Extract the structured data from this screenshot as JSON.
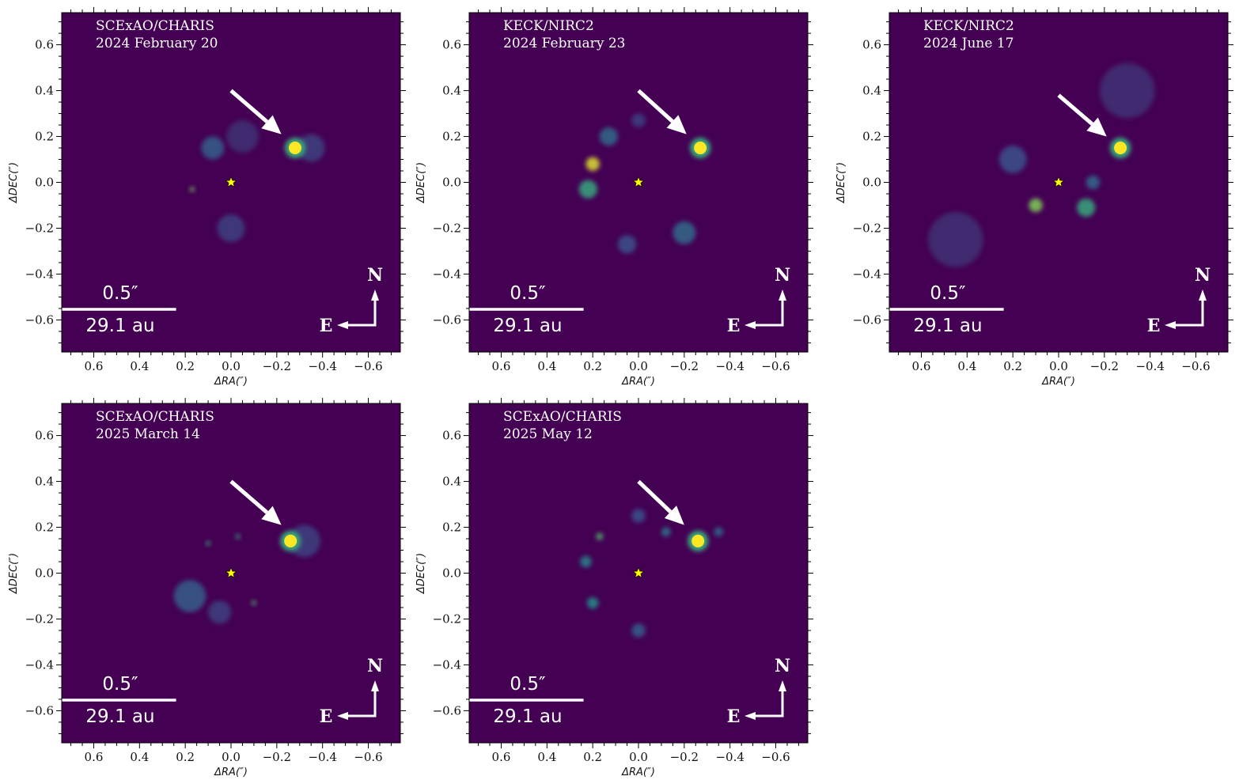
{
  "figure": {
    "colormap": "viridis",
    "background_color": "#440154",
    "companion_color": "#fde725",
    "star_color": "#ffff00",
    "arrow_color": "#ffffff"
  },
  "chart_data": [
    {
      "type": "heatmap",
      "panel_index": 0,
      "instrument": "SCExAO/CHARIS",
      "date": "2024 February 20",
      "xlabel": "ΔRA(″)",
      "ylabel": "ΔDEC(″)",
      "xlim": [
        0.74,
        -0.74
      ],
      "ylim": [
        -0.74,
        0.74
      ],
      "xticks": [
        0.6,
        0.4,
        0.2,
        0.0,
        -0.2,
        -0.4,
        -0.6
      ],
      "xtick_labels": [
        "0.6",
        "0.4",
        "0.2",
        "0.0",
        "−0.2",
        "−0.4",
        "−0.6"
      ],
      "yticks": [
        0.6,
        0.4,
        0.2,
        0.0,
        -0.2,
        -0.4,
        -0.6
      ],
      "ytick_labels": [
        "0.6",
        "0.4",
        "0.2",
        "0.0",
        "−0.2",
        "−0.4",
        "−0.6"
      ],
      "star": {
        "x": 0.0,
        "y": 0.0
      },
      "companion": {
        "x": -0.28,
        "y": 0.15
      },
      "arrow": {
        "from": [
          0.0,
          0.4
        ],
        "to": [
          -0.22,
          0.21
        ]
      },
      "scale_bar": {
        "length_arcsec": 0.5,
        "label_top": "0.5″",
        "label_bottom": "29.1 au"
      },
      "compass": {
        "north": "N",
        "east": "E"
      },
      "features": [
        {
          "x": 0.08,
          "y": 0.15,
          "r": 0.05,
          "level": 0.3
        },
        {
          "x": -0.35,
          "y": 0.15,
          "r": 0.06,
          "level": 0.2
        },
        {
          "x": 0.17,
          "y": -0.03,
          "r": 0.01,
          "level": 0.8
        },
        {
          "x": 0.0,
          "y": -0.2,
          "r": 0.06,
          "level": 0.2
        },
        {
          "x": -0.05,
          "y": 0.2,
          "r": 0.07,
          "level": 0.15
        }
      ]
    },
    {
      "type": "heatmap",
      "panel_index": 1,
      "instrument": "KECK/NIRC2",
      "date": "2024 February 23",
      "xlabel": "ΔRA(″)",
      "ylabel": "ΔDEC(″)",
      "xlim": [
        0.74,
        -0.74
      ],
      "ylim": [
        -0.74,
        0.74
      ],
      "xticks": [
        0.6,
        0.4,
        0.2,
        0.0,
        -0.2,
        -0.4,
        -0.6
      ],
      "xtick_labels": [
        "0.6",
        "0.4",
        "0.2",
        "0.0",
        "−0.2",
        "−0.4",
        "−0.6"
      ],
      "yticks": [
        0.6,
        0.4,
        0.2,
        0.0,
        -0.2,
        -0.4,
        -0.6
      ],
      "ytick_labels": [
        "0.6",
        "0.4",
        "0.2",
        "0.0",
        "−0.2",
        "−0.4",
        "−0.6"
      ],
      "star": {
        "x": 0.0,
        "y": 0.0
      },
      "companion": {
        "x": -0.27,
        "y": 0.15
      },
      "arrow": {
        "from": [
          0.0,
          0.4
        ],
        "to": [
          -0.21,
          0.21
        ]
      },
      "scale_bar": {
        "length_arcsec": 0.5,
        "label_top": "0.5″",
        "label_bottom": "29.1 au"
      },
      "compass": {
        "north": "N",
        "east": "E"
      },
      "features": [
        {
          "x": 0.2,
          "y": 0.08,
          "r": 0.03,
          "level": 0.95
        },
        {
          "x": 0.22,
          "y": -0.03,
          "r": 0.04,
          "level": 0.6
        },
        {
          "x": 0.13,
          "y": 0.2,
          "r": 0.04,
          "level": 0.35
        },
        {
          "x": -0.2,
          "y": -0.22,
          "r": 0.05,
          "level": 0.35
        },
        {
          "x": 0.05,
          "y": -0.27,
          "r": 0.04,
          "level": 0.25
        },
        {
          "x": 0.0,
          "y": 0.27,
          "r": 0.03,
          "level": 0.2
        }
      ]
    },
    {
      "type": "heatmap",
      "panel_index": 2,
      "instrument": "KECK/NIRC2",
      "date": "2024 June 17",
      "xlabel": "ΔRA(″)",
      "ylabel": "ΔDEC(″)",
      "xlim": [
        0.74,
        -0.74
      ],
      "ylim": [
        -0.74,
        0.74
      ],
      "xticks": [
        0.6,
        0.4,
        0.2,
        0.0,
        -0.2,
        -0.4,
        -0.6
      ],
      "xtick_labels": [
        "0.6",
        "0.4",
        "0.2",
        "0.0",
        "−0.2",
        "−0.4",
        "−0.6"
      ],
      "yticks": [
        0.6,
        0.4,
        0.2,
        0.0,
        -0.2,
        -0.4,
        -0.6
      ],
      "ytick_labels": [
        "0.6",
        "0.4",
        "0.2",
        "0.0",
        "−0.2",
        "−0.4",
        "−0.6"
      ],
      "star": {
        "x": 0.0,
        "y": 0.0
      },
      "companion": {
        "x": -0.27,
        "y": 0.15
      },
      "arrow": {
        "from": [
          0.0,
          0.38
        ],
        "to": [
          -0.21,
          0.2
        ]
      },
      "scale_bar": {
        "length_arcsec": 0.5,
        "label_top": "0.5″",
        "label_bottom": "29.1 au"
      },
      "compass": {
        "north": "N",
        "east": "E"
      },
      "features": [
        {
          "x": 0.1,
          "y": -0.1,
          "r": 0.03,
          "level": 0.8
        },
        {
          "x": -0.12,
          "y": -0.11,
          "r": 0.04,
          "level": 0.6
        },
        {
          "x": -0.15,
          "y": 0.0,
          "r": 0.03,
          "level": 0.35
        },
        {
          "x": 0.2,
          "y": 0.1,
          "r": 0.06,
          "level": 0.25
        },
        {
          "x": 0.45,
          "y": -0.25,
          "r": 0.12,
          "level": 0.15
        },
        {
          "x": -0.3,
          "y": 0.4,
          "r": 0.12,
          "level": 0.15
        }
      ]
    },
    {
      "type": "heatmap",
      "panel_index": 3,
      "instrument": "SCExAO/CHARIS",
      "date": "2025 March 14",
      "xlabel": "ΔRA(″)",
      "ylabel": "ΔDEC(″)",
      "xlim": [
        0.74,
        -0.74
      ],
      "ylim": [
        -0.74,
        0.74
      ],
      "xticks": [
        0.6,
        0.4,
        0.2,
        0.0,
        -0.2,
        -0.4,
        -0.6
      ],
      "xtick_labels": [
        "0.6",
        "0.4",
        "0.2",
        "0.0",
        "−0.2",
        "−0.4",
        "−0.6"
      ],
      "yticks": [
        0.6,
        0.4,
        0.2,
        0.0,
        -0.2,
        -0.4,
        -0.6
      ],
      "ytick_labels": [
        "0.6",
        "0.4",
        "0.2",
        "0.0",
        "−0.2",
        "−0.4",
        "−0.6"
      ],
      "star": {
        "x": 0.0,
        "y": 0.0
      },
      "companion": {
        "x": -0.26,
        "y": 0.14
      },
      "arrow": {
        "from": [
          0.0,
          0.4
        ],
        "to": [
          -0.22,
          0.21
        ]
      },
      "scale_bar": {
        "length_arcsec": 0.5,
        "label_top": "0.5″",
        "label_bottom": "29.1 au"
      },
      "compass": {
        "north": "N",
        "east": "E"
      },
      "features": [
        {
          "x": 0.18,
          "y": -0.1,
          "r": 0.07,
          "level": 0.3
        },
        {
          "x": 0.05,
          "y": -0.17,
          "r": 0.05,
          "level": 0.2
        },
        {
          "x": 0.1,
          "y": 0.13,
          "r": 0.01,
          "level": 0.6
        },
        {
          "x": -0.03,
          "y": 0.16,
          "r": 0.01,
          "level": 0.6
        },
        {
          "x": -0.1,
          "y": -0.13,
          "r": 0.01,
          "level": 0.7
        },
        {
          "x": -0.32,
          "y": 0.14,
          "r": 0.07,
          "level": 0.2
        }
      ]
    },
    {
      "type": "heatmap",
      "panel_index": 4,
      "instrument": "SCExAO/CHARIS",
      "date": "2025 May 12",
      "xlabel": "ΔRA(″)",
      "ylabel": "ΔDEC(″)",
      "xlim": [
        0.74,
        -0.74
      ],
      "ylim": [
        -0.74,
        0.74
      ],
      "xticks": [
        0.6,
        0.4,
        0.2,
        0.0,
        -0.2,
        -0.4,
        -0.6
      ],
      "xtick_labels": [
        "0.6",
        "0.4",
        "0.2",
        "0.0",
        "−0.2",
        "−0.4",
        "−0.6"
      ],
      "yticks": [
        0.6,
        0.4,
        0.2,
        0.0,
        -0.2,
        -0.4,
        -0.6
      ],
      "ytick_labels": [
        "0.6",
        "0.4",
        "0.2",
        "0.0",
        "−0.2",
        "−0.4",
        "−0.6"
      ],
      "star": {
        "x": 0.0,
        "y": 0.0
      },
      "companion": {
        "x": -0.26,
        "y": 0.14
      },
      "arrow": {
        "from": [
          -0.0,
          0.4
        ],
        "to": [
          -0.2,
          0.21
        ]
      },
      "scale_bar": {
        "length_arcsec": 0.5,
        "label_top": "0.5″",
        "label_bottom": "29.1 au"
      },
      "compass": {
        "north": "N",
        "east": "E"
      },
      "features": [
        {
          "x": 0.17,
          "y": 0.16,
          "r": 0.015,
          "level": 0.7
        },
        {
          "x": 0.23,
          "y": 0.05,
          "r": 0.025,
          "level": 0.45
        },
        {
          "x": 0.2,
          "y": -0.13,
          "r": 0.025,
          "level": 0.5
        },
        {
          "x": -0.12,
          "y": 0.18,
          "r": 0.02,
          "level": 0.4
        },
        {
          "x": -0.35,
          "y": 0.18,
          "r": 0.02,
          "level": 0.35
        },
        {
          "x": 0.0,
          "y": -0.25,
          "r": 0.03,
          "level": 0.3
        },
        {
          "x": 0.0,
          "y": 0.25,
          "r": 0.03,
          "level": 0.25
        }
      ]
    }
  ]
}
